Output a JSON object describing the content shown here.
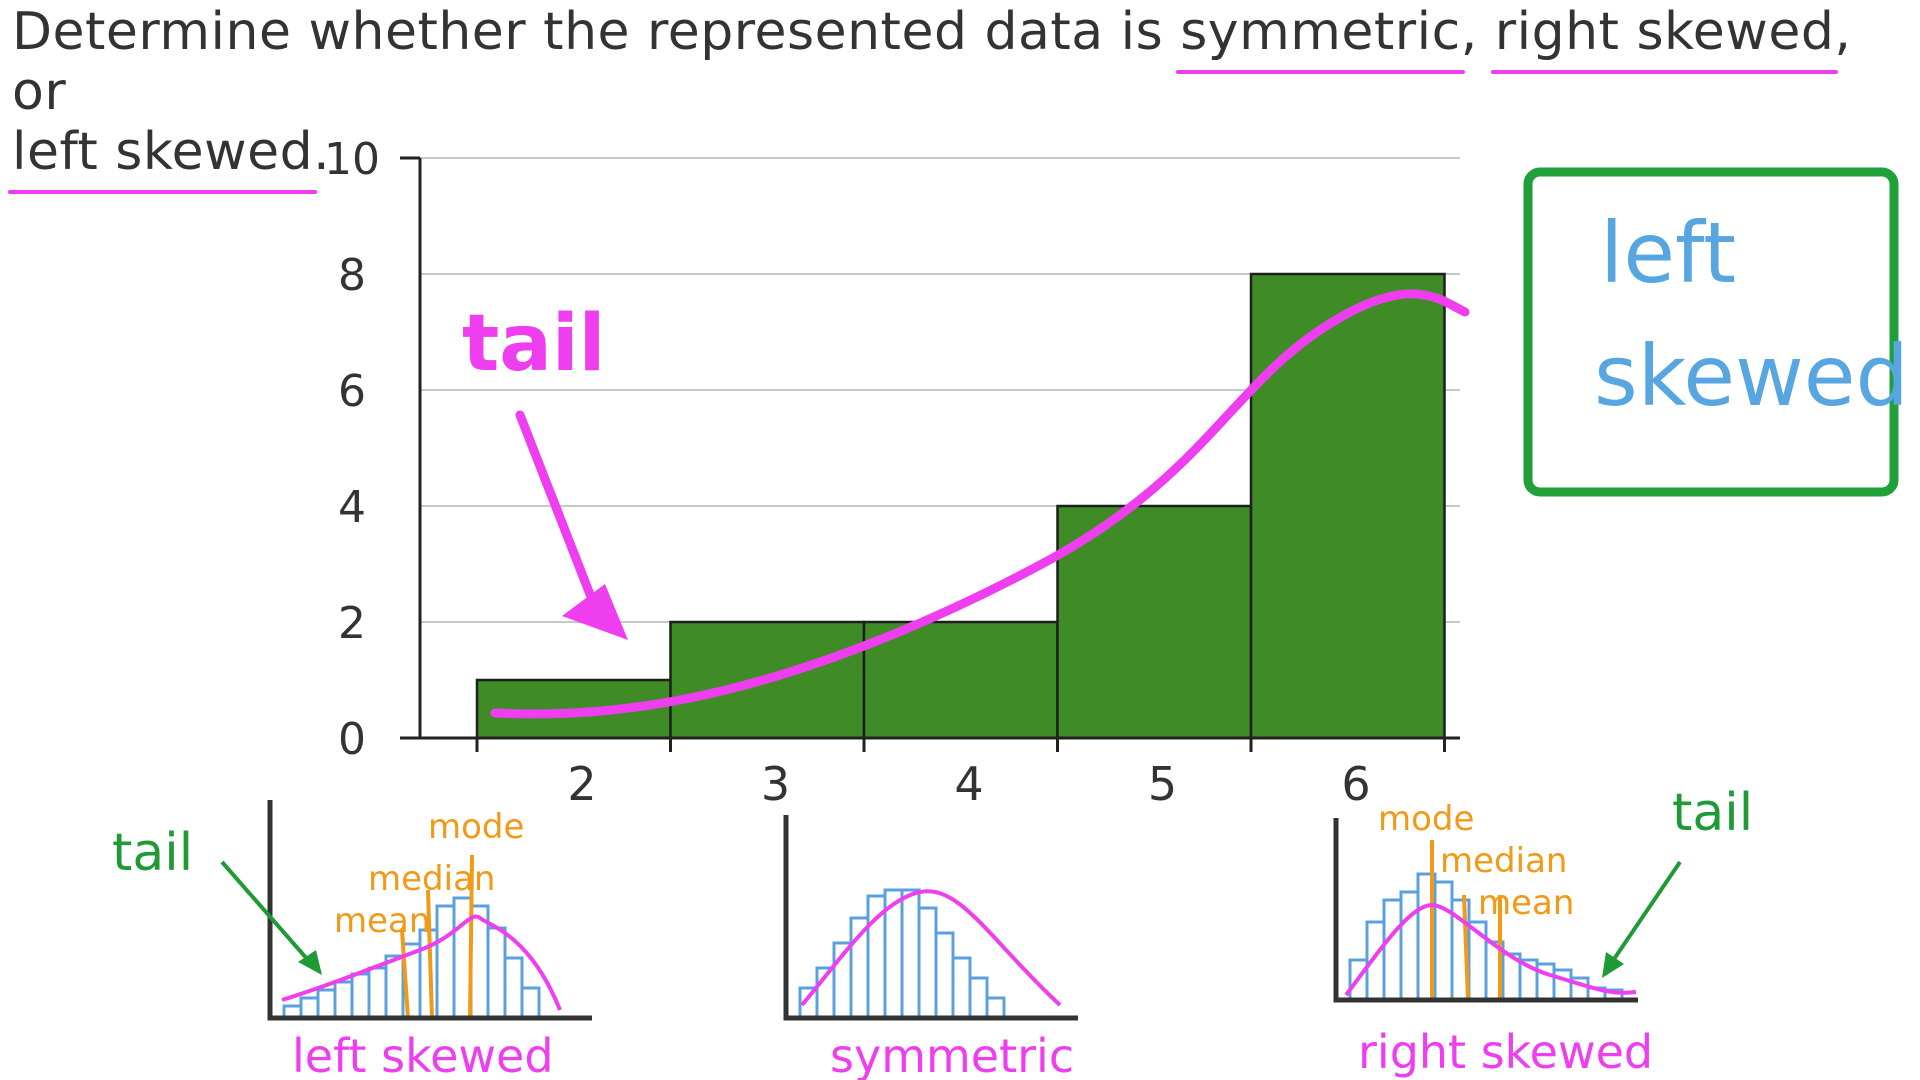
{
  "question": {
    "part1": "Determine whether the represented data is ",
    "opt_symmetric": "symmetric",
    "sep": ", ",
    "opt_right": "right skewed",
    "part2": ", or ",
    "opt_left": "left skewed",
    "part3": "."
  },
  "annotations": {
    "tail": "tail",
    "answer_line1": "left",
    "answer_line2": "skewed"
  },
  "colors": {
    "bar": "#3f8c26",
    "curve": "#ef3df0",
    "answer_box": "#1fa038",
    "answer_text": "#57a6e1",
    "ref_bars": "#5aa0dc",
    "ref_lines": "#f29a17",
    "ref_tail": "#1f9a36"
  },
  "chart_data": {
    "type": "bar",
    "categories": [
      "2",
      "3",
      "4",
      "5",
      "6"
    ],
    "values": [
      1,
      2,
      2,
      4,
      8
    ],
    "yticks": [
      "0",
      "2",
      "4",
      "6",
      "8",
      "10"
    ],
    "ylim": [
      0,
      10
    ],
    "grid": true,
    "title": "",
    "xlabel": "",
    "ylabel": ""
  },
  "reference_graphs": {
    "left": {
      "caption": "left skewed",
      "mode": "mode",
      "median": "median",
      "mean": "mean",
      "tail": "tail"
    },
    "symmetric": {
      "caption": "symmetric"
    },
    "right": {
      "caption": "right skewed",
      "mode": "mode",
      "median": "median",
      "mean": "mean",
      "tail": "tail"
    }
  }
}
